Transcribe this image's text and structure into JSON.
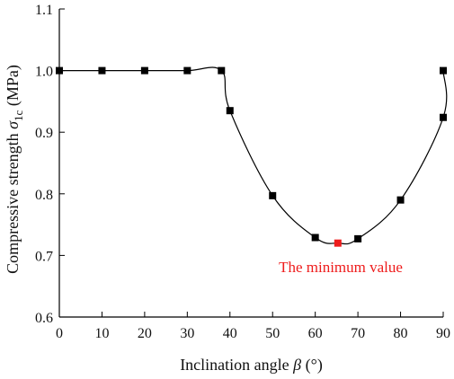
{
  "chart_data": {
    "type": "line",
    "title": "",
    "xlabel": {
      "prefix": "Inclination angle ",
      "symbol": "β",
      "suffix": " (°)"
    },
    "ylabel": {
      "prefix": "Compressive strength ",
      "symbol": "σ",
      "subscript": "1c",
      "suffix": " (MPa)"
    },
    "xlim": [
      0,
      90
    ],
    "ylim": [
      0.6,
      1.1
    ],
    "xticks": [
      0,
      10,
      20,
      30,
      40,
      50,
      60,
      70,
      80,
      90
    ],
    "yticks": [
      0.6,
      0.7,
      0.8,
      0.9,
      1.0,
      1.1
    ],
    "ytick_labels": [
      "0.6",
      "0.7",
      "0.8",
      "0.9",
      "1.0",
      "1.1"
    ],
    "grid": false,
    "series": [
      {
        "color": "#000000",
        "marker": "square",
        "points": [
          {
            "x": 0,
            "y": 1.0
          },
          {
            "x": 10,
            "y": 1.0
          },
          {
            "x": 20,
            "y": 1.0
          },
          {
            "x": 30,
            "y": 1.0
          },
          {
            "x": 38,
            "y": 1.0
          },
          {
            "x": 40,
            "y": 0.935
          },
          {
            "x": 50,
            "y": 0.797
          },
          {
            "x": 60,
            "y": 0.729
          },
          {
            "x": 65.3,
            "y": 0.72
          },
          {
            "x": 70,
            "y": 0.727
          },
          {
            "x": 80,
            "y": 0.79
          },
          {
            "x": 90,
            "y": 0.924
          },
          {
            "x": 90,
            "y": 1.0
          }
        ]
      }
    ],
    "highlight": {
      "x": 65.3,
      "y": 0.72,
      "color": "#ee1c1c"
    },
    "annotation": {
      "text": "The minimum value",
      "color": "#ee1c1c"
    }
  }
}
